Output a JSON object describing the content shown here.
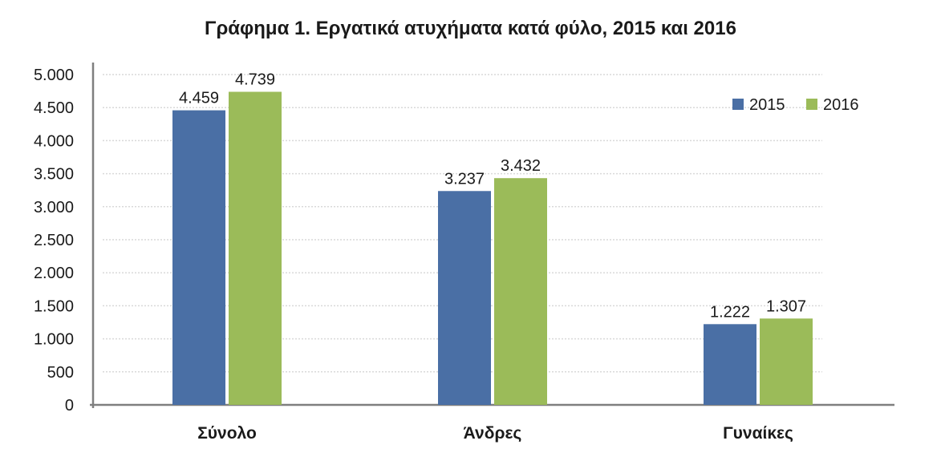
{
  "chart_data": {
    "type": "bar",
    "title": "Γράφημα 1. Εργατικά ατυχήματα κατά φύλο, 2015 και 2016",
    "categories": [
      "Σύνολο",
      "Άνδρες",
      "Γυναίκες"
    ],
    "series": [
      {
        "name": "2015",
        "values": [
          4459,
          3237,
          1222
        ],
        "labels": [
          "4.459",
          "3.237",
          "1.222"
        ],
        "color": "#4a6fa5"
      },
      {
        "name": "2016",
        "values": [
          4739,
          3432,
          1307
        ],
        "labels": [
          "4.739",
          "3.432",
          "1.307"
        ],
        "color": "#9bbb59"
      }
    ],
    "ylim": [
      0,
      5000
    ],
    "yticks": [
      0,
      500,
      1000,
      1500,
      2000,
      2500,
      3000,
      3500,
      4000,
      4500,
      5000
    ],
    "ytick_labels": [
      "0",
      "500",
      "1.000",
      "1.500",
      "2.000",
      "2.500",
      "3.000",
      "3.500",
      "4.000",
      "4.500",
      "5.000"
    ],
    "grid": true,
    "legend_position": "top-right"
  },
  "colors": {
    "gridline": "#d9d9d9",
    "axis": "#7f7f7f"
  }
}
